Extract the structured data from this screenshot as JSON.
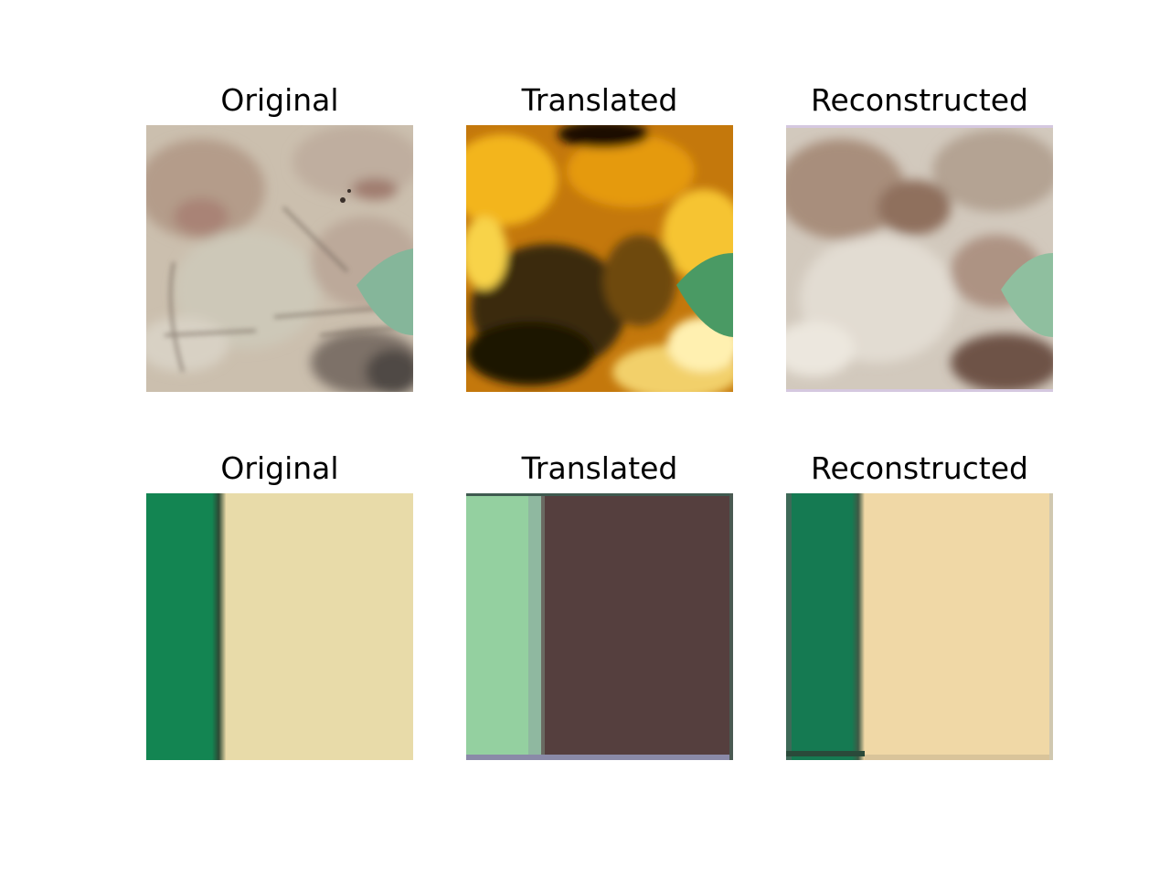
{
  "rows": [
    {
      "panels": [
        {
          "title": "Original",
          "image_desc": "watercolor-texture-original-icon"
        },
        {
          "title": "Translated",
          "image_desc": "orange-texture-translated-icon"
        },
        {
          "title": "Reconstructed",
          "image_desc": "watercolor-texture-reconstructed-icon"
        }
      ]
    },
    {
      "panels": [
        {
          "title": "Original",
          "image_desc": "green-beige-stripes-original-icon"
        },
        {
          "title": "Translated",
          "image_desc": "mint-brown-stripes-translated-icon"
        },
        {
          "title": "Reconstructed",
          "image_desc": "green-beige-stripes-reconstructed-icon"
        }
      ]
    }
  ],
  "colors": {
    "watercolor_base": "#cbbfae",
    "watercolor_brown": "#9c7b6b",
    "watercolor_green": "#85b69a",
    "translated_orange": "#e09a14",
    "translated_dark": "#3a2a08",
    "stripe_green": "#138552",
    "stripe_beige": "#e8dba9",
    "stripe_mint": "#94d0a0",
    "stripe_brown": "#553f3e",
    "stripe_peach": "#f0d8a6"
  }
}
